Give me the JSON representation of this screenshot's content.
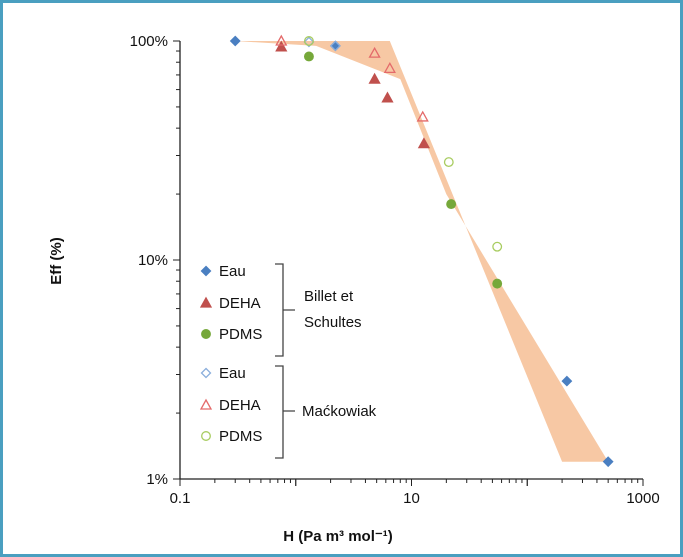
{
  "chart_data": {
    "type": "scatter",
    "title": "",
    "xlabel": "H (Pa m³ mol⁻¹)",
    "ylabel": "Eff (%)",
    "xscale": "log",
    "yscale": "log",
    "xlim": [
      0.1,
      1000
    ],
    "ylim": [
      0.01,
      1
    ],
    "x_tick_labels": [
      "0.1",
      "10",
      "1000"
    ],
    "x_tick_values": [
      0.1,
      10,
      1000
    ],
    "y_tick_labels": [
      "1%",
      "10%",
      "100%"
    ],
    "y_tick_values": [
      0.01,
      0.1,
      1
    ],
    "grid": false,
    "band": {
      "color": "#f7c8a4",
      "upper": [
        [
          0.3,
          1.0
        ],
        [
          6.5,
          1.0
        ],
        [
          200,
          0.012
        ]
      ],
      "lower": [
        [
          0.3,
          1.0
        ],
        [
          1.5,
          0.95
        ],
        [
          8,
          0.67
        ],
        [
          20,
          0.2
        ],
        [
          500,
          0.012
        ]
      ]
    },
    "series": [
      {
        "name": "Eau",
        "group": "Billet et Schultes",
        "marker": "diamond",
        "filled": true,
        "color": "#4a7fc1",
        "points": [
          [
            0.3,
            1.0
          ],
          [
            2.2,
            0.95
          ],
          [
            220,
            0.028
          ],
          [
            500,
            0.012
          ]
        ]
      },
      {
        "name": "DEHA",
        "group": "Billet et Schultes",
        "marker": "triangle",
        "filled": true,
        "color": "#c0504d",
        "points": [
          [
            0.75,
            0.94
          ],
          [
            4.8,
            0.67
          ],
          [
            6.2,
            0.55
          ],
          [
            12.8,
            0.34
          ]
        ]
      },
      {
        "name": "PDMS",
        "group": "Billet et Schultes",
        "marker": "circle",
        "filled": true,
        "color": "#76a83a",
        "points": [
          [
            1.3,
            0.85
          ],
          [
            22,
            0.18
          ],
          [
            55,
            0.078
          ]
        ]
      },
      {
        "name": "Eau",
        "group": "Maćkowiak",
        "marker": "diamond",
        "filled": false,
        "color": "#8aaedc",
        "points": [
          [
            1.3,
            0.99
          ],
          [
            2.2,
            0.95
          ]
        ]
      },
      {
        "name": "DEHA",
        "group": "Maćkowiak",
        "marker": "triangle",
        "filled": false,
        "color": "#e46a6a",
        "points": [
          [
            0.75,
            1.0
          ],
          [
            4.8,
            0.88
          ],
          [
            6.5,
            0.75
          ],
          [
            12.5,
            0.45
          ]
        ]
      },
      {
        "name": "PDMS",
        "group": "Maćkowiak",
        "marker": "circle",
        "filled": false,
        "color": "#a8cc60",
        "points": [
          [
            1.3,
            1.0
          ],
          [
            21,
            0.28
          ],
          [
            55,
            0.115
          ]
        ]
      }
    ],
    "legend": {
      "placement": "bottom-left",
      "groups": [
        "Billet et Schultes",
        "Maćkowiak"
      ]
    }
  }
}
